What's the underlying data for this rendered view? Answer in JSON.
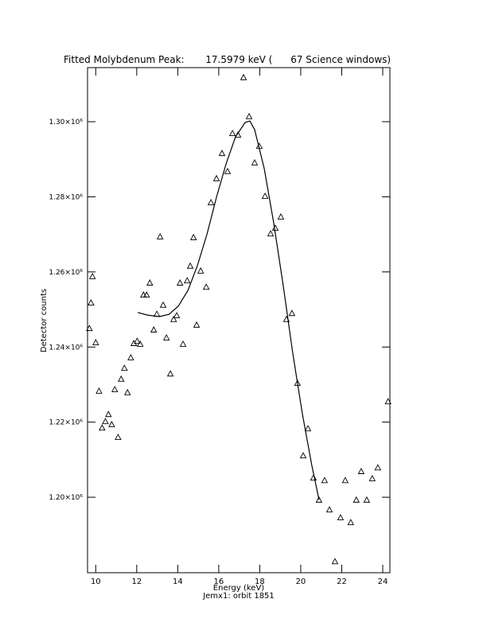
{
  "chart_data": {
    "type": "scatter",
    "title": "Fitted Molybdenum Peak:       17.5979 keV (      67 Science windows)",
    "x_label": "Energy (keV)",
    "y_label": "Detector counts",
    "subtitle": "Jemx1: orbit 1851",
    "xlim": [
      9.6,
      24.35
    ],
    "ylim": [
      1179900,
      1314400
    ],
    "xticks": [
      10,
      12,
      14,
      16,
      18,
      20,
      22,
      24
    ],
    "yticks": [
      {
        "value": 1200000,
        "label": "1.20×10⁶"
      },
      {
        "value": 1220000,
        "label": "1.22×10⁶"
      },
      {
        "value": 1240000,
        "label": "1.24×10⁶"
      },
      {
        "value": 1260000,
        "label": "1.26×10⁶"
      },
      {
        "value": 1280000,
        "label": "1.28×10⁶"
      },
      {
        "value": 1300000,
        "label": "1.30×10⁶"
      }
    ],
    "color": "#000000",
    "series": [
      {
        "marker": "triangle",
        "x": [
          9.69,
          9.77,
          9.84,
          10.0,
          10.16,
          10.31,
          10.47,
          10.62,
          10.78,
          10.93,
          11.09,
          11.24,
          11.4,
          11.55,
          11.71,
          11.86,
          12.02,
          12.17,
          12.33,
          12.48,
          12.64,
          12.83,
          12.98,
          13.14,
          13.29,
          13.45,
          13.64,
          13.8,
          13.95,
          14.11,
          14.26,
          14.46,
          14.61,
          14.77,
          14.92,
          15.12,
          15.39,
          15.62,
          15.89,
          16.16,
          16.43,
          16.67,
          16.94,
          17.21,
          17.48,
          17.75,
          17.98,
          18.26,
          18.53,
          18.76,
          19.03,
          19.3,
          19.57,
          19.84,
          20.12,
          20.35,
          20.62,
          20.89,
          21.16,
          21.4,
          21.67,
          21.94,
          22.17,
          22.44,
          22.71,
          22.95,
          23.22,
          23.49,
          23.76,
          24.26
        ],
        "values": [
          1244900,
          1251700,
          1258700,
          1241100,
          1228200,
          1218400,
          1220100,
          1222000,
          1219300,
          1228600,
          1215900,
          1231400,
          1234300,
          1227800,
          1237100,
          1240900,
          1241500,
          1240700,
          1253800,
          1253800,
          1257000,
          1244500,
          1248700,
          1269300,
          1251100,
          1242400,
          1232800,
          1247300,
          1248300,
          1257000,
          1240700,
          1257600,
          1261500,
          1269100,
          1245800,
          1260200,
          1255900,
          1278400,
          1284800,
          1291500,
          1286700,
          1296800,
          1296400,
          1311700,
          1301300,
          1289000,
          1293400,
          1280100,
          1270100,
          1271600,
          1274600,
          1247300,
          1248900,
          1230300,
          1211000,
          1218200,
          1205100,
          1199200,
          1204400,
          1196600,
          1182800,
          1194500,
          1204400,
          1193200,
          1199200,
          1206800,
          1199200,
          1204900,
          1207800,
          1225400
        ]
      },
      {
        "marker": "line",
        "x": [
          12.05,
          12.52,
          13.1,
          13.57,
          14.03,
          14.5,
          14.96,
          15.43,
          15.89,
          16.36,
          16.82,
          17.29,
          17.52,
          17.75,
          18.22,
          18.68,
          19.15,
          19.61,
          20.08,
          20.54,
          20.89
        ],
        "values": [
          1249200,
          1248500,
          1248100,
          1248700,
          1250900,
          1255100,
          1261700,
          1270100,
          1279900,
          1288800,
          1296000,
          1299800,
          1300200,
          1297900,
          1287500,
          1273100,
          1256200,
          1238400,
          1222200,
          1208500,
          1199400
        ]
      }
    ]
  }
}
